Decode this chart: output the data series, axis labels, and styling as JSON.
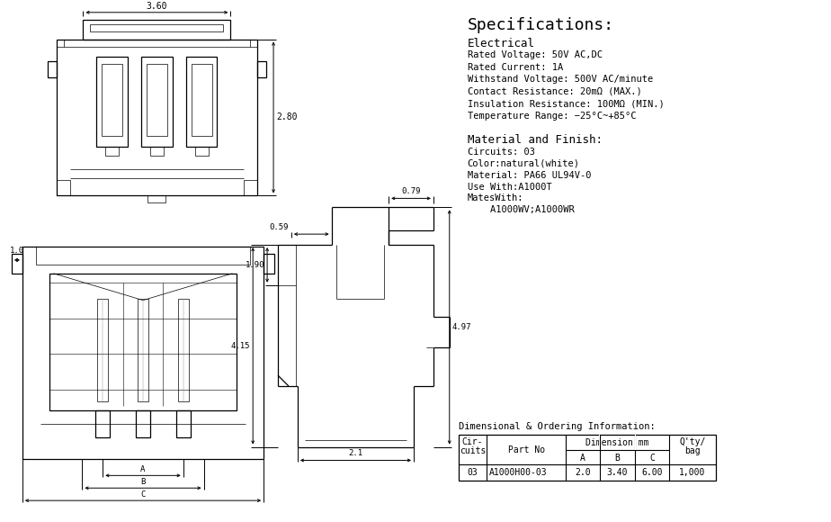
{
  "bg_color": "#ffffff",
  "line_color": "#000000",
  "title": "Specifications:",
  "specs": {
    "electrical_title": "Electrical",
    "lines": [
      "Rated Voltage: 50V AC,DC",
      "Rated Current: 1A",
      "Withstand Voltage: 500V AC/minute",
      "Contact Resistance: 20mΩ (MAX.)",
      "Insulation Resistance: 100MΩ (MIN.)",
      "Temperature Range: −25°C~+85°C"
    ],
    "material_title": "Material and Finish:",
    "material_lines": [
      "Circuits: 03",
      "Color:natural(white)",
      "Material: PA66 UL94V-0",
      "Use With:A1000T",
      "MatesWith:",
      "    A1000WV;A1000WR"
    ]
  },
  "dim_info_title": "Dimensional & Ordering Information:",
  "table_row": [
    "03",
    "A1000H00-03",
    "2.0",
    "3.40",
    "6.00",
    "1,000"
  ]
}
